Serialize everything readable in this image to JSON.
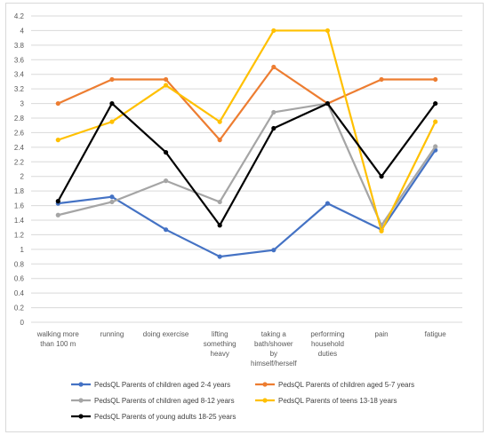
{
  "chart_data": {
    "type": "line",
    "title": "",
    "xlabel": "",
    "ylabel": "",
    "ylim": [
      0,
      4.2
    ],
    "ytick_step": 0.2,
    "yticks": [
      "0",
      "0.2",
      "0.4",
      "0.6",
      "0.8",
      "1",
      "1.2",
      "1.4",
      "1.6",
      "1.8",
      "2",
      "2.2",
      "2.4",
      "2.6",
      "2.8",
      "3",
      "3.2",
      "3.4",
      "3.6",
      "3.8",
      "4",
      "4.2"
    ],
    "grid": true,
    "legend_position": "bottom",
    "categories": [
      [
        "walking more",
        "than 100 m"
      ],
      [
        "running"
      ],
      [
        "doing exercise"
      ],
      [
        "lifting",
        "something",
        "heavy"
      ],
      [
        "taking a",
        "bath/shower",
        "by",
        "himself/herself"
      ],
      [
        "performing",
        "household",
        "duties"
      ],
      [
        "pain"
      ],
      [
        "fatigue"
      ]
    ],
    "series": [
      {
        "name": "PedsQL Parents of children aged 2-4 years",
        "color": "#4472c4",
        "values": [
          1.63,
          1.72,
          1.27,
          0.9,
          0.99,
          1.63,
          1.27,
          2.36
        ]
      },
      {
        "name": "PedsQL Parents of children aged 5-7 years",
        "color": "#ed7d31",
        "values": [
          3.0,
          3.33,
          3.33,
          2.5,
          3.5,
          3.0,
          3.33,
          3.33
        ]
      },
      {
        "name": "PedsQL Parents of children aged 8-12 years",
        "color": "#a5a5a5",
        "values": [
          1.47,
          1.65,
          1.94,
          1.65,
          2.88,
          3.0,
          1.33,
          2.41
        ]
      },
      {
        "name": "PedsQL Parents of teens 13-18 years",
        "color": "#ffc000",
        "values": [
          2.5,
          2.75,
          3.25,
          2.75,
          4.0,
          4.0,
          1.25,
          2.75
        ]
      },
      {
        "name": "PedsQL Parents of young adults 18-25 years",
        "color": "#000000",
        "values": [
          1.66,
          3.0,
          2.33,
          1.33,
          2.66,
          3.0,
          2.0,
          3.0
        ]
      }
    ]
  }
}
